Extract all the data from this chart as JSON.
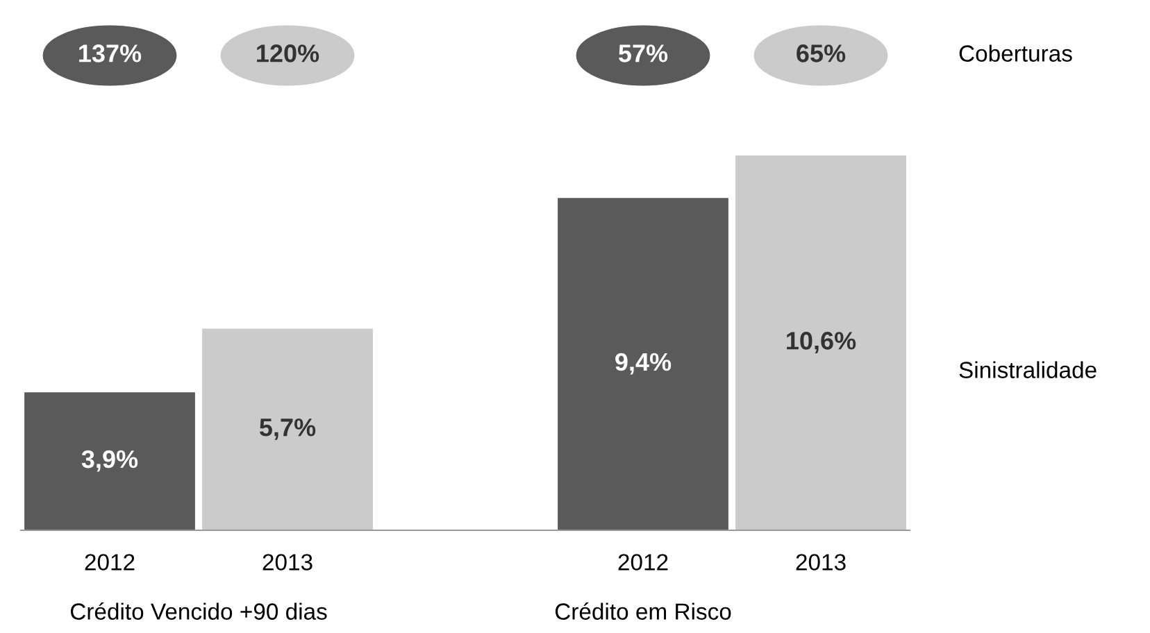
{
  "chart_data": {
    "type": "bar",
    "categories": [
      "2012",
      "2013",
      null,
      "2012",
      "2013"
    ],
    "values": [
      3.9,
      5.7,
      null,
      9.4,
      10.6
    ],
    "colors": [
      "#5a5a5a",
      "#cbcbcb",
      null,
      "#5a5a5a",
      "#cbcbcb"
    ],
    "value_labels": [
      "3,9%",
      "5,7%",
      null,
      "9,4%",
      "10,6%"
    ],
    "annotations": [
      "137%",
      "120%",
      "57%",
      "65%",
      "Coberturas",
      "Sinistralidade",
      "Crédito Vencido +90 dias",
      "Crédito em Risco"
    ]
  }
}
